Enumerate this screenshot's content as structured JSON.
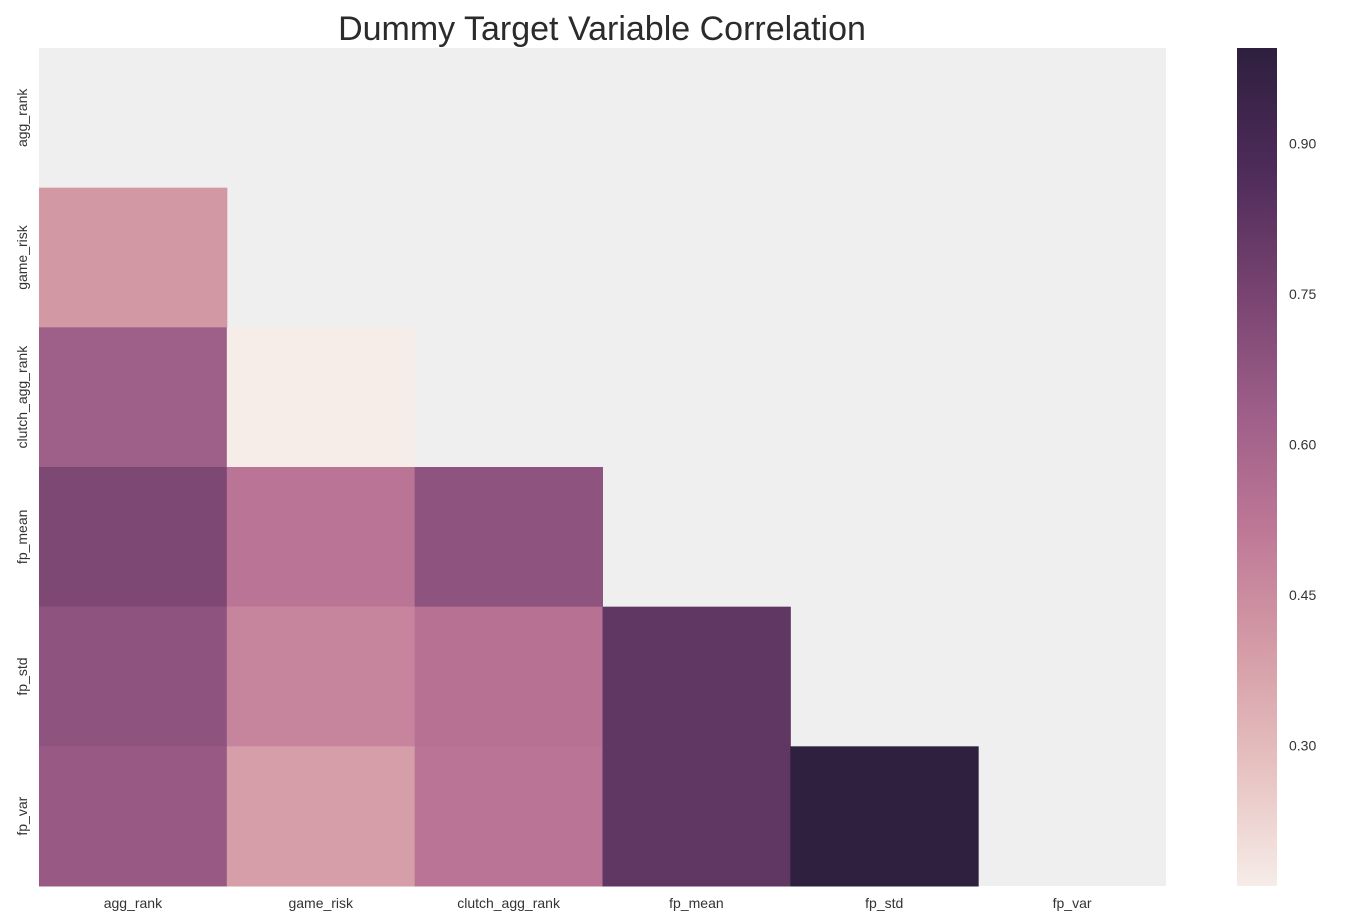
{
  "chart_data": {
    "type": "heatmap",
    "title": "Dummy Target Variable Correlation",
    "variables": [
      "agg_rank",
      "game_risk",
      "clutch_agg_rank",
      "fp_mean",
      "fp_std",
      "fp_var"
    ],
    "mask": "upper-triangle-including-diagonal",
    "values": [
      [
        null,
        null,
        null,
        null,
        null,
        null
      ],
      [
        0.41,
        null,
        null,
        null,
        null,
        null
      ],
      [
        0.63,
        0.16,
        null,
        null,
        null,
        null
      ],
      [
        0.73,
        0.53,
        0.68,
        null,
        null,
        null
      ],
      [
        0.68,
        0.47,
        0.54,
        0.82,
        null,
        null
      ],
      [
        0.65,
        0.39,
        0.53,
        0.82,
        0.99,
        null
      ]
    ],
    "colorbar": {
      "min": 0.16,
      "max": 0.995,
      "ticks": [
        "0.30",
        "0.45",
        "0.60",
        "0.75",
        "0.90"
      ],
      "colors": [
        "#f6ece8",
        "#e6c1c0",
        "#d49ba6",
        "#bd7796",
        "#9c5d88",
        "#76426f",
        "#4d2b59",
        "#2e1f3e"
      ]
    },
    "grid": false,
    "background_color": "#efefef"
  }
}
